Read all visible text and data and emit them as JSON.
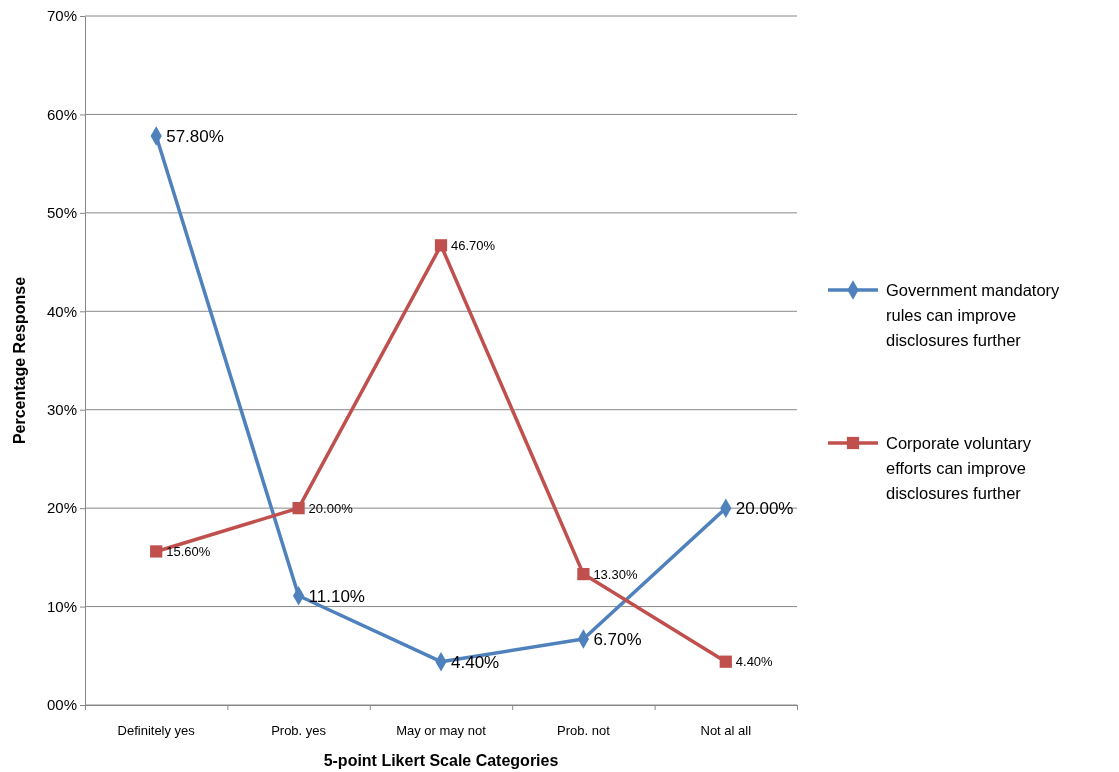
{
  "chart_data": {
    "type": "line",
    "xlabel": "5-point Likert Scale Categories",
    "ylabel": "Percentage Response",
    "categories": [
      "Definitely yes",
      "Prob. yes",
      "May or may not",
      "Prob. not",
      "Not al all"
    ],
    "ylim": [
      0,
      70
    ],
    "yticks": [
      {
        "value": 0,
        "label": "00%"
      },
      {
        "value": 10,
        "label": "10%"
      },
      {
        "value": 20,
        "label": "20%"
      },
      {
        "value": 30,
        "label": "30%"
      },
      {
        "value": 40,
        "label": "40%"
      },
      {
        "value": 50,
        "label": "50%"
      },
      {
        "value": 60,
        "label": "60%"
      },
      {
        "value": 70,
        "label": "70%"
      }
    ],
    "grid": "y",
    "legend": "right",
    "line_style": "solid",
    "series": [
      {
        "name": "Government mandatory rules can improve disclosures further",
        "color": "#4f81bd",
        "marker": "diamond",
        "values": [
          57.8,
          11.1,
          4.4,
          6.7,
          20.0
        ],
        "value_labels": [
          "57.80%",
          "11.10%",
          "4.40%",
          "6.70%",
          "20.00%"
        ]
      },
      {
        "name": "Corporate voluntary efforts can improve disclosures further",
        "color": "#c0504d",
        "marker": "square",
        "values": [
          15.6,
          20.0,
          46.7,
          13.3,
          4.4
        ],
        "value_labels": [
          "15.60%",
          "20.00%",
          "46.70%",
          "13.30%",
          "4.40%"
        ]
      }
    ]
  }
}
